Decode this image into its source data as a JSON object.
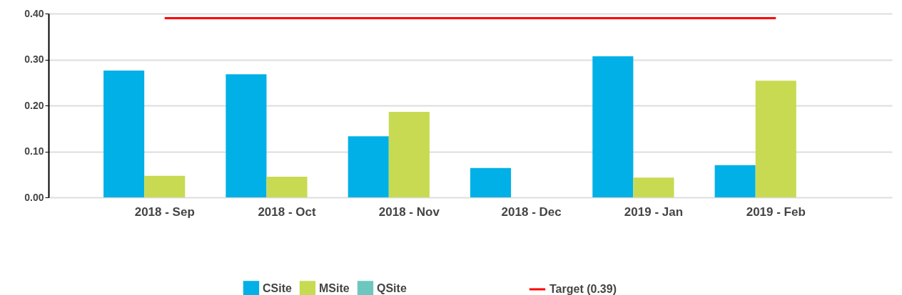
{
  "chart_data": {
    "type": "bar",
    "categories": [
      "2018 - Sep",
      "2018 - Oct",
      "2018 - Nov",
      "2018 - Dec",
      "2019 - Jan",
      "2019 - Feb"
    ],
    "ylim": [
      0,
      0.4
    ],
    "yticks": [
      {
        "value": 0,
        "label": "0.00"
      },
      {
        "value": 0.1,
        "label": "0.10"
      },
      {
        "value": 0.2,
        "label": "0.20"
      },
      {
        "value": 0.3,
        "label": "0.30"
      },
      {
        "value": 0.4,
        "label": "0.40"
      }
    ],
    "grid": "y",
    "legend": "bottom",
    "marker": "none",
    "series": [
      {
        "name": "CSite",
        "color": "#00b0e6",
        "values": [
          0.276,
          0.268,
          0.133,
          0.064,
          0.307,
          0.07
        ]
      },
      {
        "name": "MSite",
        "color": "#c8da52",
        "values": [
          0.047,
          0.045,
          0.186,
          null,
          0.043,
          0.254
        ]
      },
      {
        "name": "QSite",
        "color": "#6cc8be",
        "values": [
          null,
          null,
          null,
          null,
          null,
          null
        ]
      },
      {
        "name": "Target (0.39)",
        "type": "line",
        "color": "#ff0000",
        "values": [
          0.39,
          0.39,
          0.39,
          0.39,
          0.39,
          0.39
        ]
      }
    ]
  }
}
